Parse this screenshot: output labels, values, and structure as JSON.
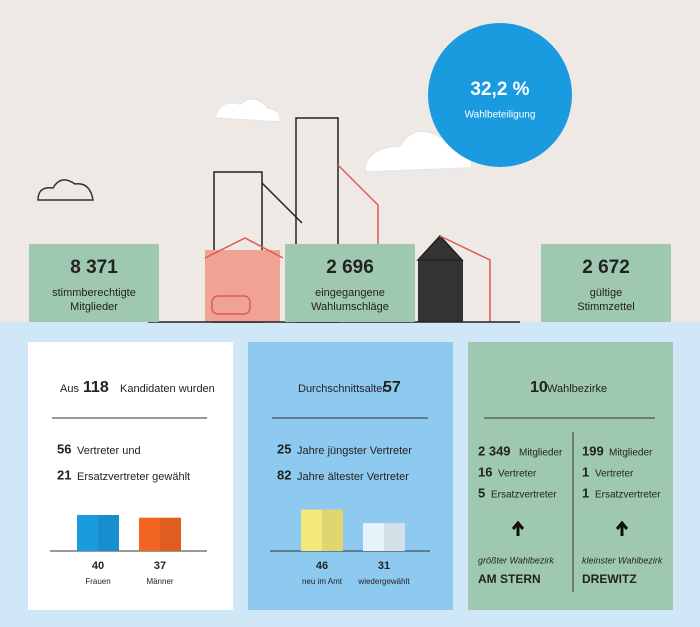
{
  "header": {
    "turnout": "32,2 %",
    "turnout_label": "Wahlbeteiligung"
  },
  "stats": [
    {
      "value": "8 371",
      "label": [
        "stimmberechtigte",
        "Mitglieder"
      ]
    },
    {
      "value": "2 696",
      "label": [
        "eingegangene",
        "Wahlumschläge"
      ]
    },
    {
      "value": "2 672",
      "label": [
        "gültige",
        "Stimmzettel"
      ]
    }
  ],
  "candidates": {
    "prefix": "Aus",
    "count": "118",
    "suffix": "Kandidaten wurden",
    "lines": [
      {
        "value": "56",
        "text": "Vertreter und"
      },
      {
        "value": "21",
        "text": "Ersatzvertreter gewählt"
      }
    ],
    "bars": [
      {
        "label": "Frauen",
        "value": 40,
        "color": "#1a9be0"
      },
      {
        "label": "Männer",
        "value": 37,
        "color": "#f26522"
      }
    ]
  },
  "age": {
    "label": "Durchschnittsalter",
    "value": "57",
    "lines": [
      {
        "value": "25",
        "text": "Jahre jüngster Vertreter"
      },
      {
        "value": "82",
        "text": "Jahre ältester Vertreter"
      }
    ],
    "bars": [
      {
        "label": "neu im Amt",
        "value": 46,
        "color": "#f3e97a"
      },
      {
        "label": "wiedergewählt",
        "value": 31,
        "color": "#e6f3fb"
      }
    ]
  },
  "districts": {
    "count": "10",
    "label": "Wahlbezirke",
    "columns": [
      {
        "lines": [
          {
            "value": "2 349",
            "text": "Mitglieder"
          },
          {
            "value": "16",
            "text": "Vertreter"
          },
          {
            "value": "5",
            "text": "Ersatzvertreter"
          }
        ],
        "caption": "größter Wahlbezirk",
        "name": "AM STERN"
      },
      {
        "lines": [
          {
            "value": "199",
            "text": "Mitglieder"
          },
          {
            "value": "1",
            "text": "Vertreter"
          },
          {
            "value": "1",
            "text": "Ersatzvertreter"
          }
        ],
        "caption": "kleinster Wahlbezirk",
        "name": "DREWITZ"
      }
    ]
  }
}
